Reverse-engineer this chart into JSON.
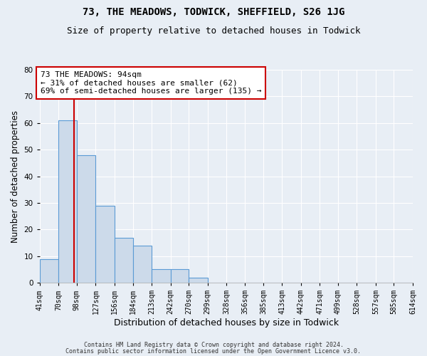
{
  "title": "73, THE MEADOWS, TODWICK, SHEFFIELD, S26 1JG",
  "subtitle": "Size of property relative to detached houses in Todwick",
  "xlabel": "Distribution of detached houses by size in Todwick",
  "ylabel": "Number of detached properties",
  "bin_edges": [
    41,
    70,
    98,
    127,
    156,
    184,
    213,
    242,
    270,
    299,
    328,
    356,
    385,
    413,
    442,
    471,
    499,
    528,
    557,
    585,
    614
  ],
  "bar_heights": [
    9,
    61,
    48,
    29,
    17,
    14,
    5,
    5,
    2,
    0,
    0,
    0,
    0,
    0,
    0,
    0,
    0,
    0,
    0,
    0
  ],
  "bar_color": "#ccdaea",
  "bar_edge_color": "#5b9bd5",
  "red_line_x": 94,
  "annotation_line1": "73 THE MEADOWS: 94sqm",
  "annotation_line2": "← 31% of detached houses are smaller (62)",
  "annotation_line3": "69% of semi-detached houses are larger (135) →",
  "annotation_box_color": "white",
  "annotation_box_edge_color": "#cc0000",
  "red_line_color": "#cc0000",
  "ylim": [
    0,
    80
  ],
  "yticks": [
    0,
    10,
    20,
    30,
    40,
    50,
    60,
    70,
    80
  ],
  "xlim_left": 41,
  "xlim_right": 614,
  "footer_line1": "Contains HM Land Registry data © Crown copyright and database right 2024.",
  "footer_line2": "Contains public sector information licensed under the Open Government Licence v3.0.",
  "background_color": "#e8eef5",
  "plot_bg_color": "#e8eef5",
  "title_fontsize": 10,
  "subtitle_fontsize": 9,
  "annotation_fontsize": 8,
  "tick_label_fontsize": 7,
  "ylabel_fontsize": 8.5,
  "xlabel_fontsize": 9,
  "footer_fontsize": 6
}
